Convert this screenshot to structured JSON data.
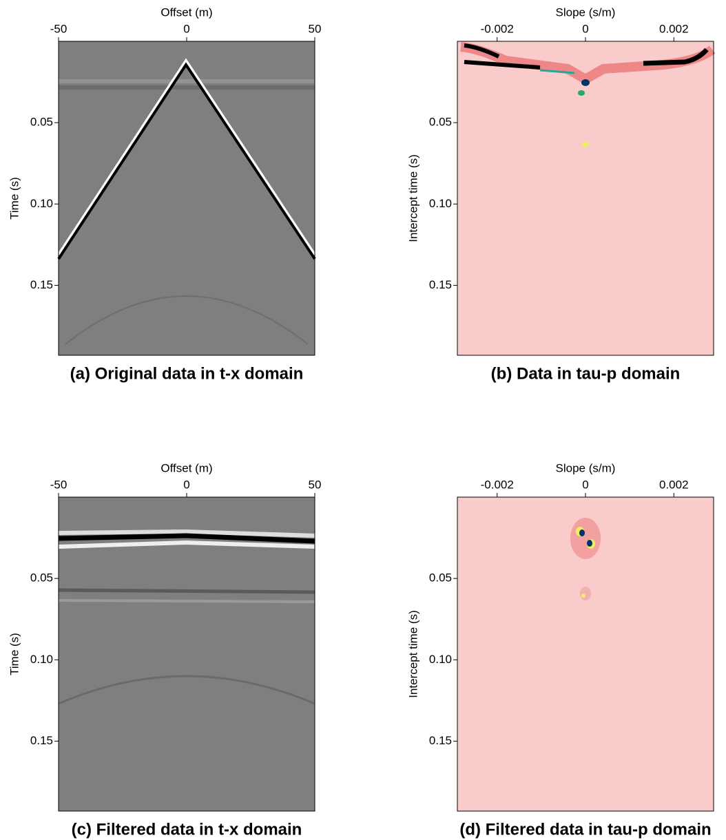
{
  "chart_data": [
    {
      "type": "image",
      "caption": "(a) Original data in t-x domain",
      "x_label": "Offset (m)",
      "y_label": "Time (s)",
      "xlim": [
        -50,
        50
      ],
      "xticks": [
        -50,
        0,
        50
      ],
      "ylim": [
        0,
        0.193
      ],
      "yticks": [
        0.05,
        {
          "value": 0.1,
          "label": "0.10"
        },
        0.15
      ]
    },
    {
      "type": "image",
      "caption": "(b) Data in tau-p domain",
      "x_label": "Slope (s/m)",
      "y_label": "Intercept time (s)",
      "xlim": [
        -0.0029,
        0.0029
      ],
      "xticks": [
        -0.002,
        0,
        0.002
      ],
      "ylim": [
        0,
        0.193
      ],
      "yticks": [
        0.05,
        {
          "value": 0.1,
          "label": "0.10"
        },
        0.15
      ]
    },
    {
      "type": "image",
      "caption": "(c) Filtered data in t-x domain",
      "x_label": "Offset (m)",
      "y_label": "Time (s)",
      "xlim": [
        -50,
        50
      ],
      "xticks": [
        -50,
        0,
        50
      ],
      "ylim": [
        0,
        0.193
      ],
      "yticks": [
        0.05,
        {
          "value": 0.1,
          "label": "0.10"
        },
        0.15
      ]
    },
    {
      "type": "image",
      "caption": "(d) Filtered data in tau-p domain",
      "x_label": "Slope (s/m)",
      "y_label": "Intercept time (s)",
      "xlim": [
        -0.0029,
        0.0029
      ],
      "xticks": [
        -0.002,
        0,
        0.002
      ],
      "ylim": [
        0,
        0.193
      ],
      "yticks": [
        0.05,
        {
          "value": 0.1,
          "label": "0.10"
        },
        0.15
      ]
    }
  ]
}
